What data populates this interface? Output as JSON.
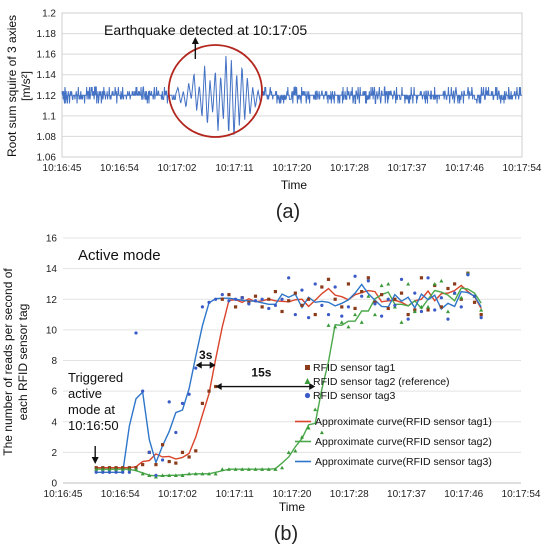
{
  "chart_data": [
    {
      "type": "line",
      "panel_label": "(a)",
      "ylabel": "Root sum squire of 3 axies [m/s²]",
      "xlabel": "Time",
      "ylim": [
        1.06,
        1.2
      ],
      "yticks": [
        "1.06",
        "1.08",
        "1.1",
        "1.12",
        "1.14",
        "1.16",
        "1.18",
        "1.2"
      ],
      "xticks": [
        "10:16:45",
        "10:16:54",
        "10:17:02",
        "10:17:11",
        "10:17:20",
        "10:17:28",
        "10:17:37",
        "10:17:46",
        "10:17:54"
      ],
      "xlim_seconds": [
        0,
        69
      ],
      "annotation": "Earthquake detected at 10:17:05",
      "annotation_time_s": 20,
      "highlight_window_s": [
        16,
        30
      ],
      "baseline": 1.12,
      "noise_levels": [
        1.112,
        1.116,
        1.12,
        1.124,
        1.128
      ],
      "quake_series": {
        "t": [
          17.0,
          17.4,
          17.8,
          18.2,
          18.6,
          19.0,
          19.4,
          19.8,
          20.2,
          20.6,
          21.0,
          21.4,
          21.8,
          22.2,
          22.6,
          23.0,
          23.4,
          23.8,
          24.2,
          24.6,
          25.0,
          25.4,
          25.8,
          26.2,
          26.6,
          27.0,
          27.4,
          27.8,
          28.2,
          28.6,
          29.0,
          29.4,
          29.8
        ],
        "v": [
          1.12,
          1.128,
          1.112,
          1.124,
          1.108,
          1.132,
          1.116,
          1.142,
          1.105,
          1.13,
          1.098,
          1.15,
          1.09,
          1.135,
          1.102,
          1.145,
          1.085,
          1.14,
          1.095,
          1.16,
          1.08,
          1.155,
          1.078,
          1.142,
          1.09,
          1.15,
          1.095,
          1.138,
          1.1,
          1.128,
          1.108,
          1.125,
          1.112
        ]
      }
    },
    {
      "type": "line",
      "panel_label": "(b)",
      "title": "Active mode",
      "ylabel": "The number of reads per second of each RFID sensor tag",
      "xlabel": "Time",
      "ylim": [
        0,
        16
      ],
      "yticks": [
        "0",
        "2",
        "4",
        "6",
        "8",
        "10",
        "12",
        "14",
        "16"
      ],
      "xticks": [
        "10:16:45",
        "10:16:54",
        "10:17:02",
        "10:17:11",
        "10:17:20",
        "10:17:28",
        "10:17:37",
        "10:17:46",
        "10:17:54"
      ],
      "xlim_seconds": [
        0,
        69
      ],
      "trigger_text": [
        "Triggered",
        "active",
        "mode at",
        "10:16:50"
      ],
      "trigger_time_s": 5,
      "gap1_label": "3s",
      "gap1_s": [
        20,
        23
      ],
      "gap1_y": 7.7,
      "gap2_label": "15s",
      "gap2_s": [
        23,
        38
      ],
      "gap2_y": 6.3,
      "legend_markers": [
        "RFID sensor tag1",
        "RFID sensor tag2 (reference)",
        "RFID sensor tag3"
      ],
      "legend_curves": [
        "Approximate curve(RFID sensor tag1)",
        "Approximate curve(RFID sensor tag2)",
        "Approximate curve(RFID sensor tag3)"
      ],
      "colors": {
        "tag1": "#c0392b",
        "tag2": "#3a9a3a",
        "tag3": "#3a5bc7",
        "curve1": "#d9442a",
        "curve2": "#4aa84a",
        "curve3": "#2e76c9",
        "marker1": "#8b3a1a"
      },
      "x": [
        5,
        6,
        7,
        8,
        9,
        10,
        11,
        12,
        13,
        14,
        15,
        16,
        17,
        18,
        19,
        20,
        21,
        22,
        23,
        24,
        25,
        26,
        27,
        28,
        29,
        30,
        31,
        32,
        33,
        34,
        35,
        36,
        37,
        38,
        39,
        40,
        41,
        42,
        43,
        44,
        45,
        46,
        47,
        48,
        49,
        50,
        51,
        52,
        53,
        54,
        55,
        56,
        57,
        58,
        59,
        60,
        61,
        62,
        63
      ],
      "series": [
        {
          "name": "RFID sensor tag1",
          "values": [
            1.0,
            1.0,
            1.0,
            1.0,
            1.0,
            1.0,
            1.0,
            1.2,
            2.0,
            1.2,
            2.5,
            1.4,
            1.3,
            2.0,
            1.7,
            2.1,
            5.2,
            6.0,
            6.3,
            12.0,
            12.3,
            11.5,
            12.1,
            11.8,
            12.2,
            11.5,
            12.0,
            12.5,
            11.2,
            11.9,
            12.4,
            11.6,
            12.0,
            11.0,
            12.8,
            13.3,
            12.0,
            11.5,
            13.0,
            11.4,
            12.5,
            13.4,
            11.8,
            12.3,
            11.4,
            12.0,
            12.4,
            11.0,
            11.3,
            13.4,
            11.3,
            12.9,
            11.5,
            12.7,
            13.0,
            12.0,
            13.7,
            11.8,
            11.0
          ]
        },
        {
          "name": "RFID sensor tag2 (reference)",
          "values": [
            0.9,
            0.9,
            0.9,
            0.9,
            0.9,
            0.9,
            0.9,
            0.6,
            0.5,
            0.4,
            0.5,
            0.5,
            0.5,
            0.5,
            0.6,
            0.6,
            0.6,
            0.6,
            0.6,
            0.9,
            0.9,
            0.9,
            0.9,
            0.9,
            0.9,
            0.9,
            0.9,
            0.9,
            1.0,
            2.0,
            2.1,
            3.0,
            3.6,
            4.8,
            3.3,
            10.3,
            10.2,
            10.5,
            10.2,
            11.0,
            10.5,
            12.2,
            11.0,
            12.9,
            13.0,
            11.5,
            10.5,
            13.0,
            11.2,
            11.5,
            11.5,
            13.0,
            13.2,
            11.2,
            12.4,
            12.1,
            13.7,
            12.2,
            11.3
          ]
        },
        {
          "name": "RFID sensor tag3",
          "values": [
            0.7,
            0.7,
            0.7,
            0.7,
            0.7,
            0.7,
            9.8,
            6.0,
            2.0,
            0.5,
            1.5,
            5.3,
            3.3,
            5.2,
            5.8,
            7.5,
            11.5,
            11.8,
            12.0,
            12.3,
            11.9,
            12.0,
            12.1,
            11.7,
            11.9,
            12.0,
            11.4,
            11.6,
            12.0,
            13.4,
            11.0,
            12.6,
            10.8,
            13.0,
            11.6,
            11.0,
            12.8,
            10.9,
            11.5,
            13.5,
            12.2,
            13.2,
            11.7,
            10.9,
            12.0,
            11.6,
            13.3,
            10.7,
            12.4,
            11.2,
            13.4,
            11.3,
            12.1,
            10.7,
            12.4,
            11.5,
            13.6,
            12.2,
            10.8
          ]
        }
      ]
    }
  ]
}
